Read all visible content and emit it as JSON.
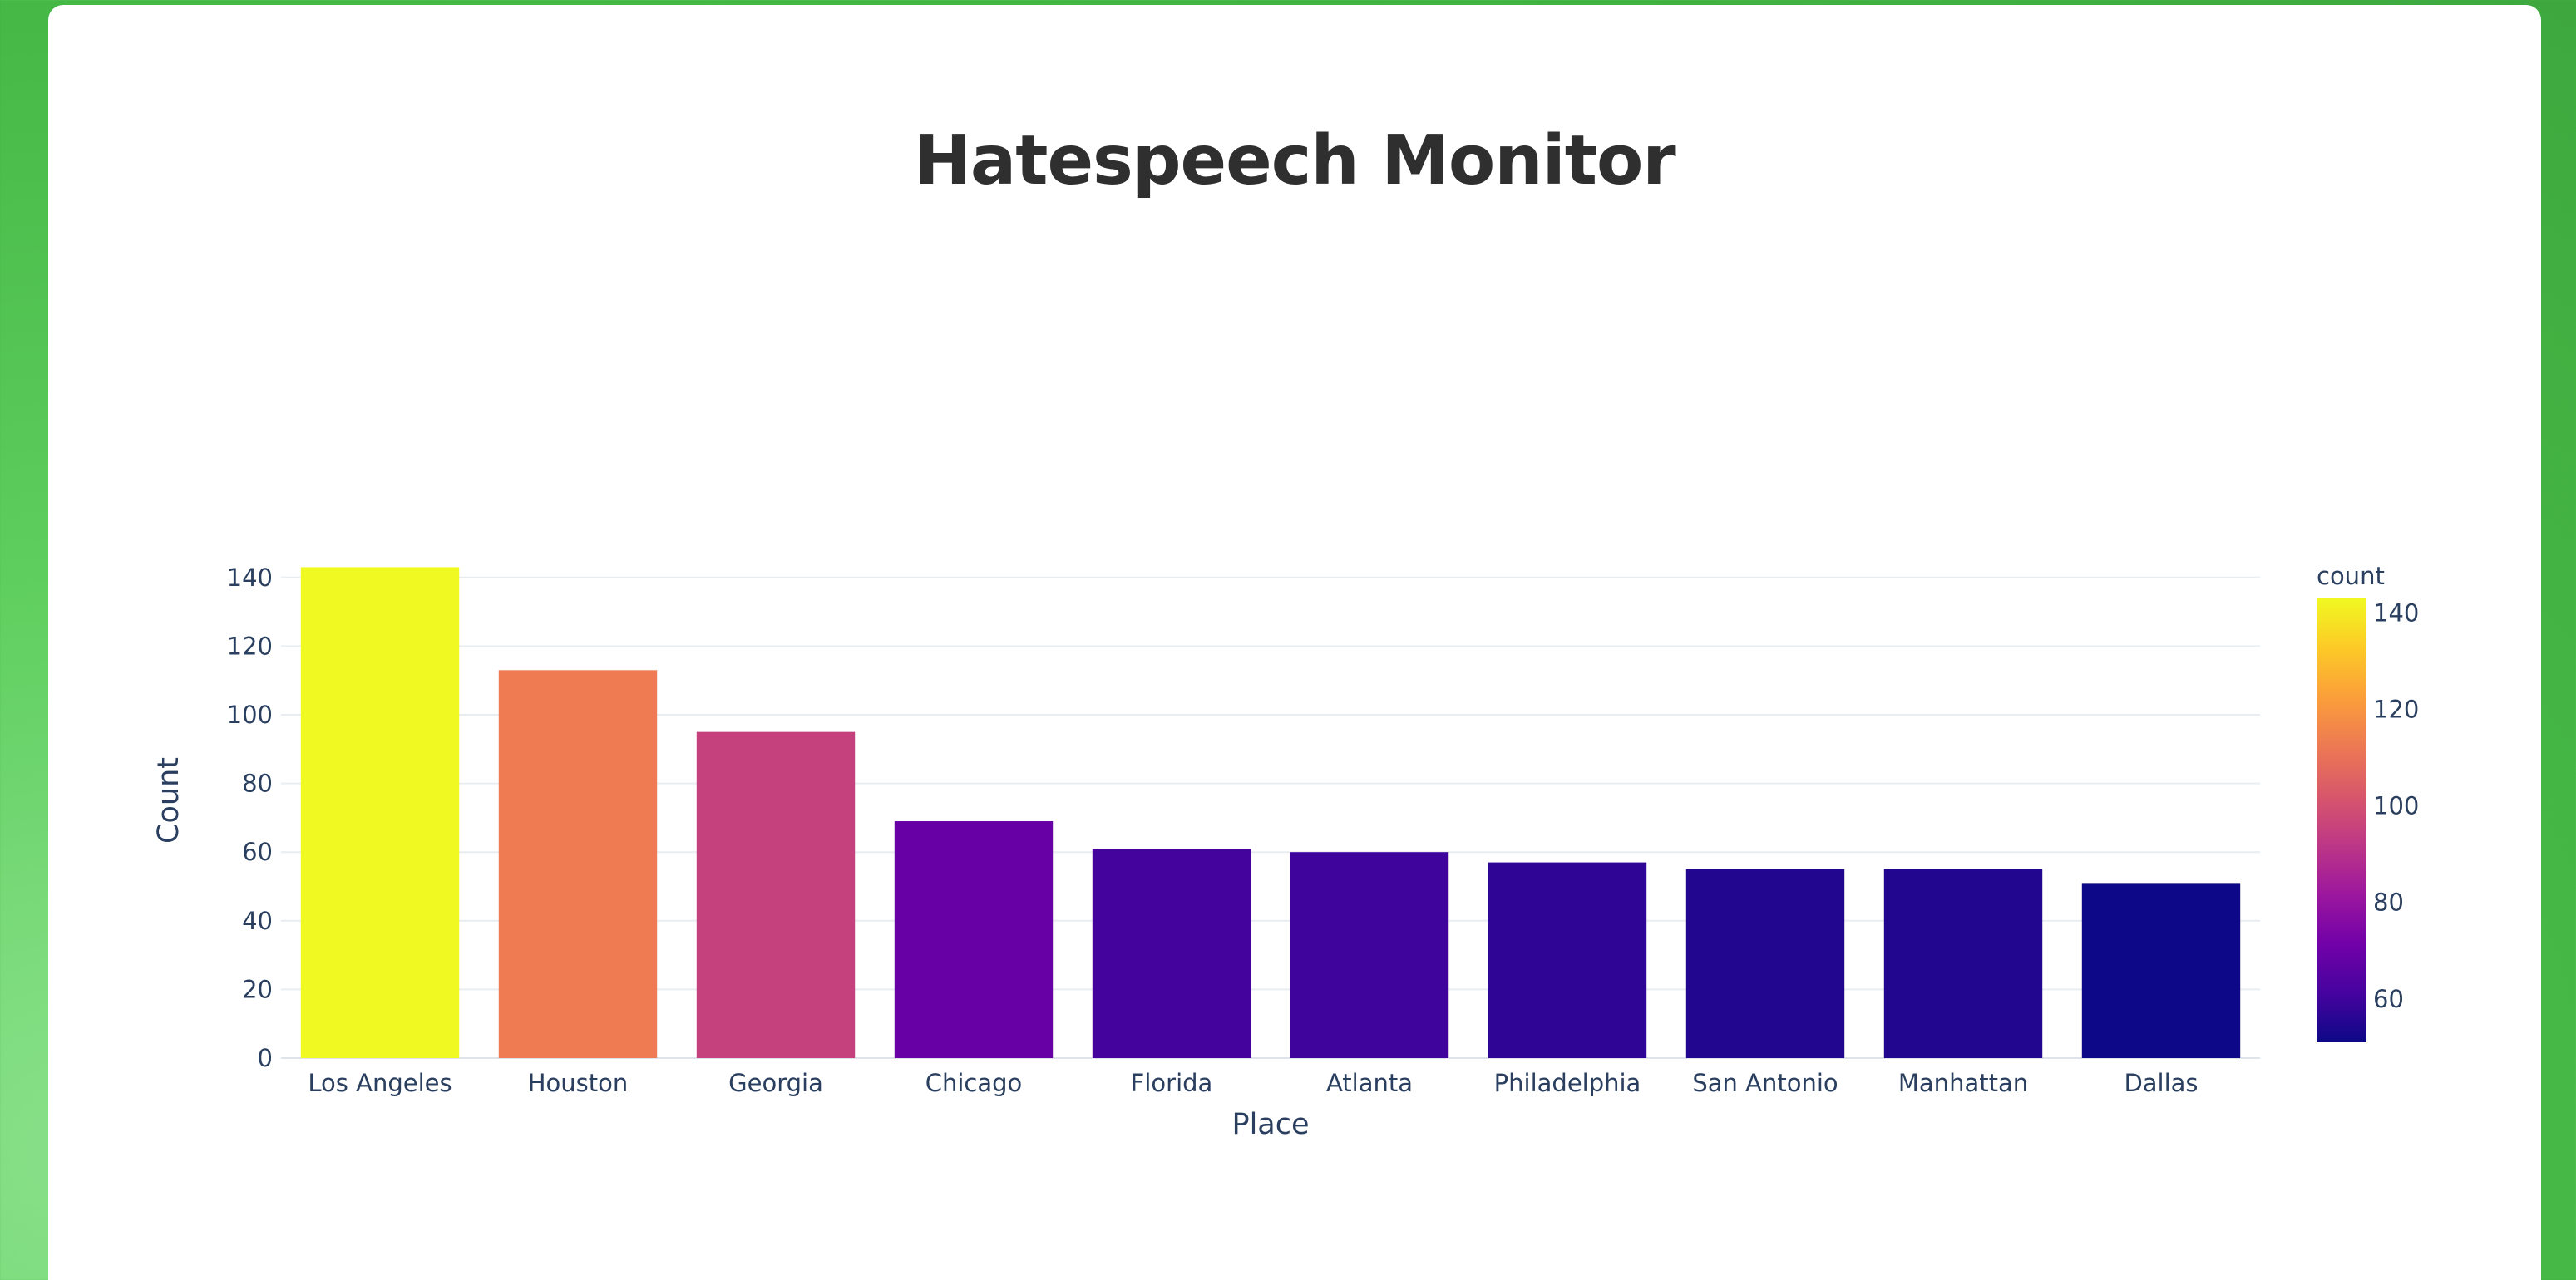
{
  "page": {
    "title": "Hatespeech Monitor"
  },
  "colors": {
    "background_green": "#4cbb4c",
    "card": "#ffffff",
    "title_text": "#2f2f2f",
    "axis_text": "#2a3f5f",
    "grid": "#e9edf2"
  },
  "chart_data": {
    "type": "bar",
    "categories": [
      "Los Angeles",
      "Houston",
      "Georgia",
      "Chicago",
      "Florida",
      "Atlanta",
      "Philadelphia",
      "San Antonio",
      "Manhattan",
      "Dallas"
    ],
    "values": [
      143,
      113,
      95,
      69,
      61,
      60,
      57,
      55,
      55,
      51
    ],
    "xlabel": "Place",
    "ylabel": "Count",
    "ylim": [
      0,
      150
    ],
    "yticks": [
      0,
      20,
      40,
      60,
      80,
      100,
      120,
      140
    ],
    "grid": true,
    "colorbar": {
      "title": "count",
      "colorscale": "plasma",
      "range": [
        51,
        143
      ],
      "ticks": [
        60,
        80,
        100,
        120,
        140
      ],
      "placement": "right"
    }
  }
}
